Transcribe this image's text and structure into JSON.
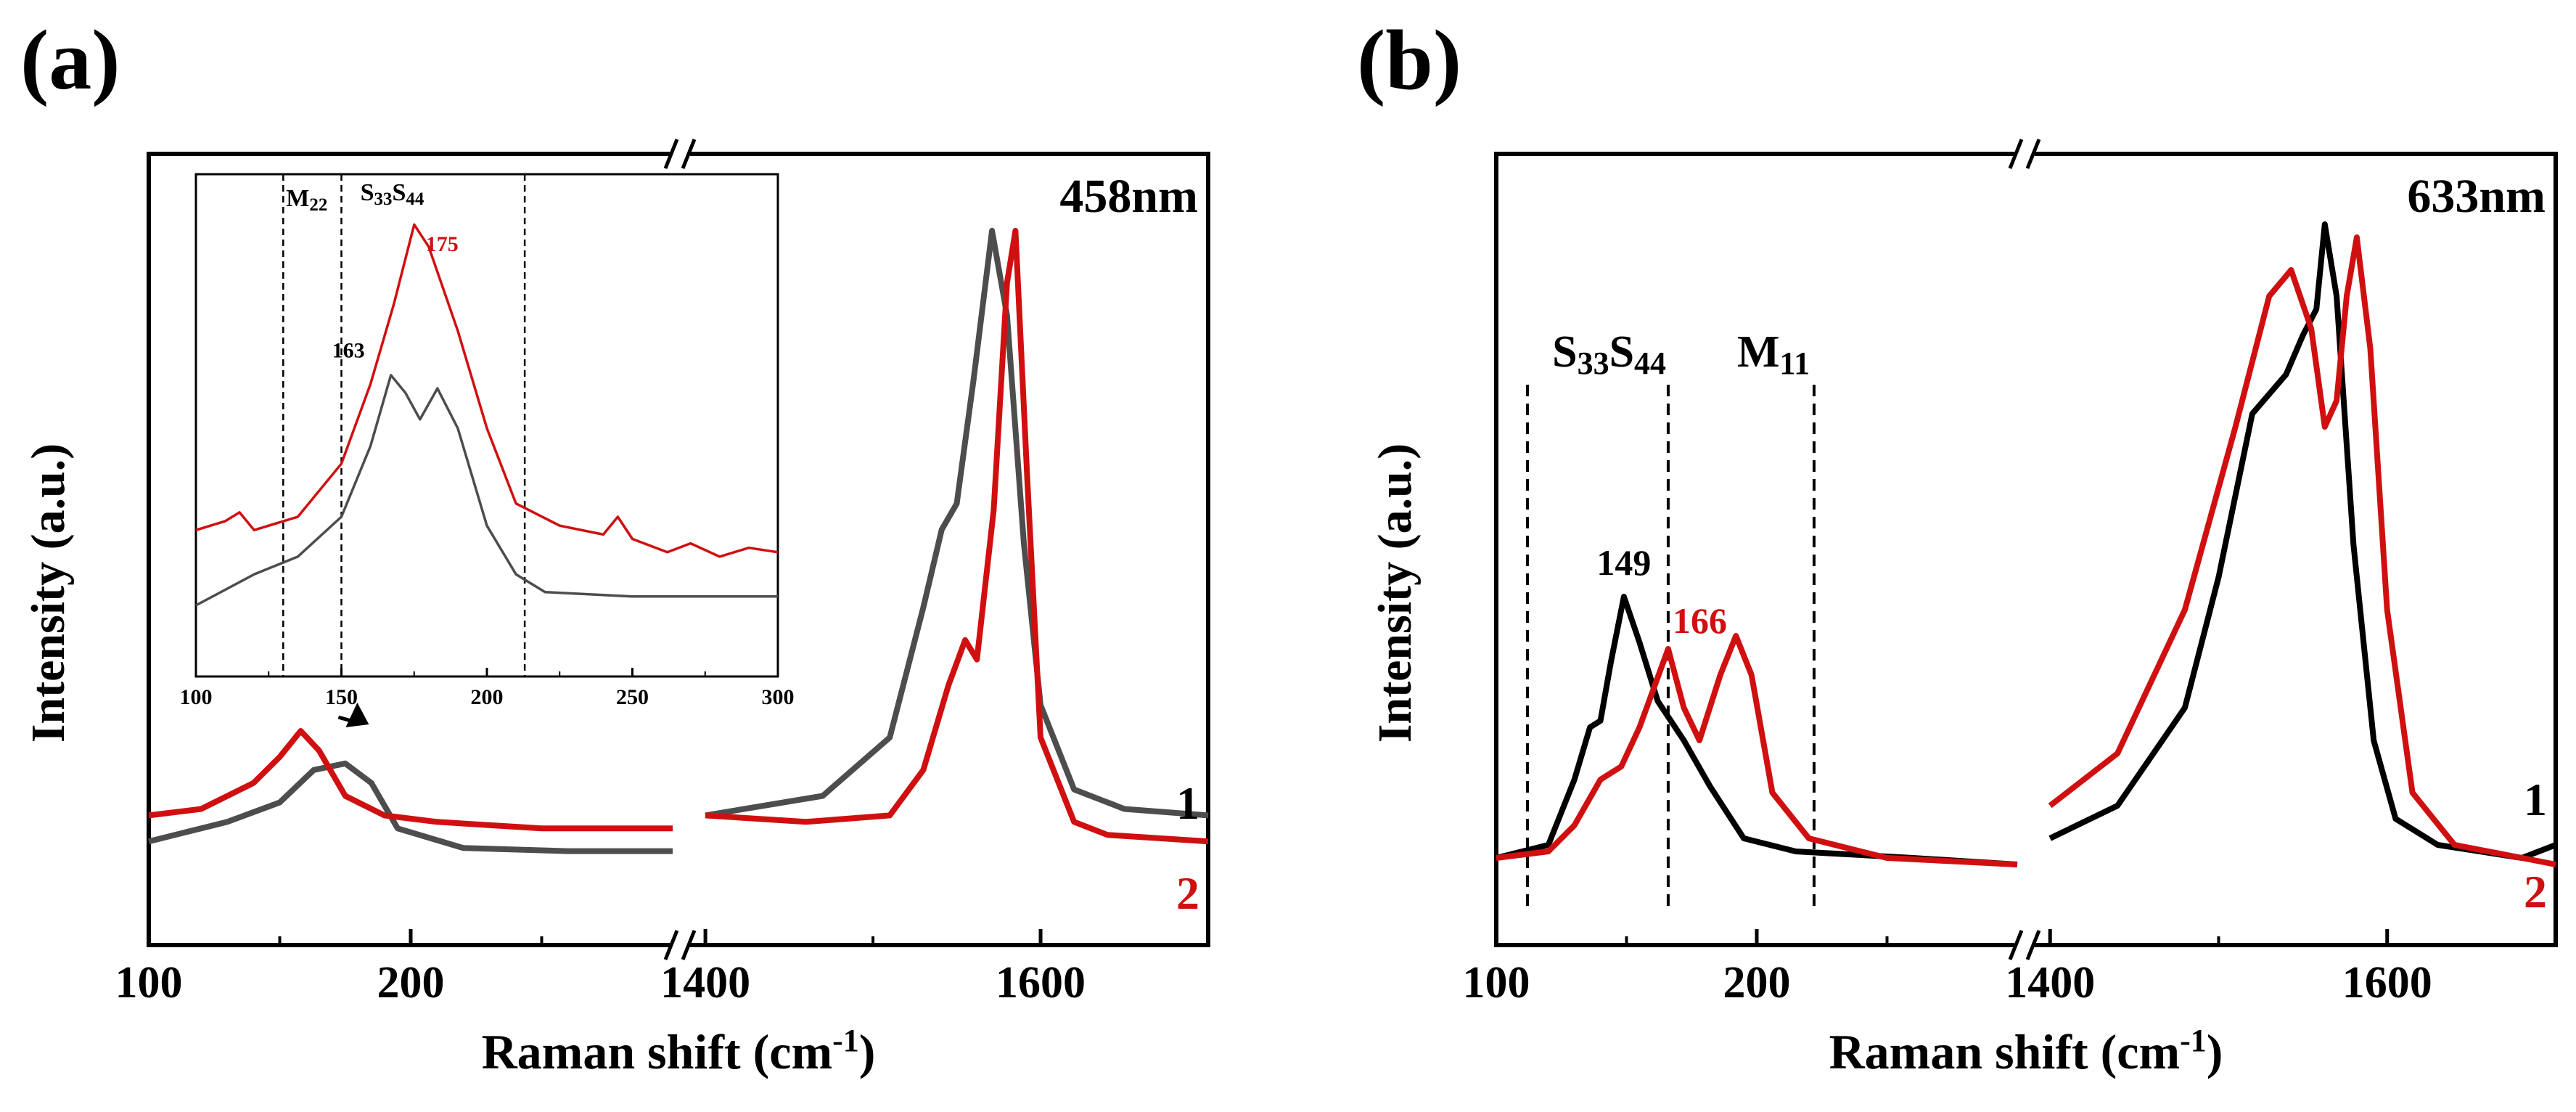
{
  "chart_data": [
    {
      "type": "line",
      "panel_label": "(a)",
      "wavelength": "458nm",
      "xlabel": "Raman shift (cm",
      "xlabel_sup": "-1",
      "xlabel_tail": ")",
      "ylabel": "Intensity (a.u.)",
      "axis_break": true,
      "segments": [
        {
          "xlim": [
            100,
            300
          ],
          "ticks": [
            "100",
            "200"
          ]
        },
        {
          "xlim": [
            1390,
            1700
          ],
          "ticks": [
            "1400",
            "1600"
          ]
        }
      ],
      "series": [
        {
          "name": "1",
          "color": "#4d4d4d",
          "points_low": [
            [
              100,
              0.04
            ],
            [
              130,
              0.07
            ],
            [
              150,
              0.1
            ],
            [
              163,
              0.15
            ],
            [
              175,
              0.16
            ],
            [
              185,
              0.13
            ],
            [
              195,
              0.06
            ],
            [
              220,
              0.03
            ],
            [
              260,
              0.025
            ],
            [
              300,
              0.025
            ]
          ],
          "points_high": [
            [
              1400,
              0.08
            ],
            [
              1470,
              0.11
            ],
            [
              1510,
              0.2
            ],
            [
              1530,
              0.4
            ],
            [
              1541,
              0.52
            ],
            [
              1550,
              0.56
            ],
            [
              1560,
              0.75
            ],
            [
              1571,
              0.98
            ],
            [
              1580,
              0.85
            ],
            [
              1590,
              0.5
            ],
            [
              1600,
              0.25
            ],
            [
              1620,
              0.12
            ],
            [
              1650,
              0.09
            ],
            [
              1700,
              0.08
            ]
          ]
        },
        {
          "name": "2",
          "color": "#d01010",
          "points_low": [
            [
              100,
              0.08
            ],
            [
              120,
              0.09
            ],
            [
              140,
              0.13
            ],
            [
              150,
              0.17
            ],
            [
              158,
              0.21
            ],
            [
              165,
              0.18
            ],
            [
              175,
              0.11
            ],
            [
              190,
              0.08
            ],
            [
              210,
              0.07
            ],
            [
              250,
              0.06
            ],
            [
              300,
              0.06
            ]
          ],
          "points_high": [
            [
              1400,
              0.08
            ],
            [
              1460,
              0.07
            ],
            [
              1510,
              0.08
            ],
            [
              1530,
              0.15
            ],
            [
              1545,
              0.28
            ],
            [
              1555,
              0.35
            ],
            [
              1562,
              0.32
            ],
            [
              1572,
              0.55
            ],
            [
              1580,
              0.9
            ],
            [
              1585,
              0.98
            ],
            [
              1592,
              0.6
            ],
            [
              1600,
              0.2
            ],
            [
              1620,
              0.07
            ],
            [
              1640,
              0.05
            ],
            [
              1700,
              0.04
            ]
          ]
        }
      ],
      "inset": {
        "xlim": [
          100,
          300
        ],
        "xticks": [
          "100",
          "150",
          "200",
          "250",
          "300"
        ],
        "vlines_x": [
          130,
          150,
          213
        ],
        "labels": {
          "m_main": "M",
          "m_sub": "22",
          "s33_main": "S",
          "s33_sub": "33",
          "s44_main": "S",
          "s44_sub": "44"
        },
        "peak_labels": [
          {
            "text": "163",
            "series": 0
          },
          {
            "text": "175",
            "series": 1
          }
        ],
        "series": [
          {
            "name": "1",
            "color": "#4d4d4d",
            "points": [
              [
                100,
                0.1
              ],
              [
                120,
                0.17
              ],
              [
                135,
                0.21
              ],
              [
                150,
                0.3
              ],
              [
                160,
                0.46
              ],
              [
                167,
                0.62
              ],
              [
                172,
                0.58
              ],
              [
                177,
                0.52
              ],
              [
                183,
                0.59
              ],
              [
                190,
                0.5
              ],
              [
                200,
                0.28
              ],
              [
                210,
                0.17
              ],
              [
                220,
                0.13
              ],
              [
                250,
                0.12
              ],
              [
                300,
                0.12
              ]
            ]
          },
          {
            "name": "2",
            "color": "#d01010",
            "points": [
              [
                100,
                0.27
              ],
              [
                110,
                0.29
              ],
              [
                115,
                0.31
              ],
              [
                120,
                0.27
              ],
              [
                135,
                0.3
              ],
              [
                150,
                0.42
              ],
              [
                160,
                0.6
              ],
              [
                168,
                0.78
              ],
              [
                175,
                0.96
              ],
              [
                180,
                0.91
              ],
              [
                190,
                0.72
              ],
              [
                200,
                0.5
              ],
              [
                210,
                0.33
              ],
              [
                225,
                0.28
              ],
              [
                240,
                0.26
              ],
              [
                245,
                0.3
              ],
              [
                250,
                0.25
              ],
              [
                262,
                0.22
              ],
              [
                270,
                0.24
              ],
              [
                280,
                0.21
              ],
              [
                290,
                0.23
              ],
              [
                300,
                0.22
              ]
            ]
          }
        ]
      },
      "curve_labels": [
        "1",
        "2"
      ]
    },
    {
      "type": "line",
      "panel_label": "(b)",
      "wavelength": "633nm",
      "xlabel": "Raman shift (cm",
      "xlabel_sup": "-1",
      "xlabel_tail": ")",
      "ylabel": "Intensity (a.u.)",
      "axis_break": true,
      "segments": [
        {
          "xlim": [
            100,
            300
          ],
          "ticks": [
            "100",
            "200"
          ]
        },
        {
          "xlim": [
            1390,
            1700
          ],
          "ticks": [
            "1400",
            "1600"
          ]
        }
      ],
      "vlines_x": [
        112,
        166,
        222
      ],
      "labels": {
        "s33_main": "S",
        "s33_sub": "33",
        "s44_main": "S",
        "s44_sub": "44",
        "m_main": "M",
        "m_sub": "11"
      },
      "peak_labels": [
        {
          "text": "149",
          "series": 0
        },
        {
          "text": "166",
          "series": 1
        }
      ],
      "series": [
        {
          "name": "1",
          "color": "#000000",
          "points_low": [
            [
              100,
              0.02
            ],
            [
              120,
              0.04
            ],
            [
              130,
              0.14
            ],
            [
              136,
              0.22
            ],
            [
              140,
              0.23
            ],
            [
              144,
              0.32
            ],
            [
              149,
              0.42
            ],
            [
              155,
              0.35
            ],
            [
              162,
              0.26
            ],
            [
              172,
              0.2
            ],
            [
              182,
              0.13
            ],
            [
              195,
              0.05
            ],
            [
              215,
              0.03
            ],
            [
              260,
              0.02
            ],
            [
              300,
              0.01
            ]
          ],
          "points_high": [
            [
              1400,
              0.05
            ],
            [
              1440,
              0.1
            ],
            [
              1480,
              0.25
            ],
            [
              1500,
              0.45
            ],
            [
              1520,
              0.7
            ],
            [
              1540,
              0.76
            ],
            [
              1550,
              0.82
            ],
            [
              1558,
              0.86
            ],
            [
              1563,
              0.99
            ],
            [
              1570,
              0.88
            ],
            [
              1580,
              0.5
            ],
            [
              1592,
              0.2
            ],
            [
              1605,
              0.08
            ],
            [
              1630,
              0.04
            ],
            [
              1680,
              0.02
            ],
            [
              1700,
              0.04
            ]
          ]
        },
        {
          "name": "2",
          "color": "#d01010",
          "points_low": [
            [
              100,
              0.02
            ],
            [
              120,
              0.03
            ],
            [
              130,
              0.07
            ],
            [
              140,
              0.14
            ],
            [
              148,
              0.16
            ],
            [
              155,
              0.22
            ],
            [
              166,
              0.34
            ],
            [
              172,
              0.25
            ],
            [
              178,
              0.2
            ],
            [
              186,
              0.3
            ],
            [
              192,
              0.36
            ],
            [
              198,
              0.3
            ],
            [
              206,
              0.12
            ],
            [
              220,
              0.05
            ],
            [
              250,
              0.02
            ],
            [
              300,
              0.01
            ]
          ],
          "points_high": [
            [
              1400,
              0.1
            ],
            [
              1440,
              0.18
            ],
            [
              1480,
              0.4
            ],
            [
              1510,
              0.68
            ],
            [
              1530,
              0.88
            ],
            [
              1543,
              0.92
            ],
            [
              1555,
              0.83
            ],
            [
              1563,
              0.68
            ],
            [
              1570,
              0.72
            ],
            [
              1576,
              0.88
            ],
            [
              1582,
              0.97
            ],
            [
              1590,
              0.8
            ],
            [
              1600,
              0.4
            ],
            [
              1615,
              0.12
            ],
            [
              1640,
              0.04
            ],
            [
              1700,
              0.01
            ]
          ]
        }
      ],
      "curve_labels": [
        "1",
        "2"
      ]
    }
  ]
}
